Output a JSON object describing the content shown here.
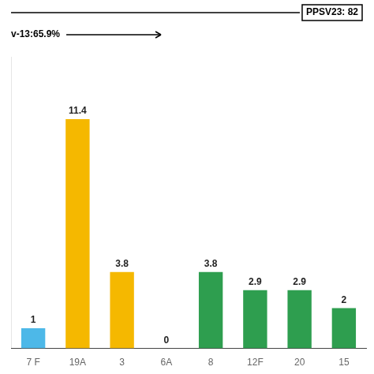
{
  "chart_data": {
    "type": "bar",
    "categories": [
      "7 F",
      "19A",
      "3",
      "6A",
      "8",
      "12F",
      "20",
      "15"
    ],
    "values": [
      1,
      11.4,
      3.8,
      0,
      3.8,
      2.9,
      2.9,
      2
    ],
    "colors": [
      "#4db8e8",
      "#f5b800",
      "#f5b800",
      "#f5b800",
      "#2e9e4f",
      "#2e9e4f",
      "#2e9e4f",
      "#2e9e4f"
    ],
    "ylim": [
      0,
      14.5
    ],
    "yticks": [],
    "data_labels": true,
    "grid": false,
    "tick_labels": "x",
    "annotations": [
      "PPSV23: 82",
      "v-13:65.9%"
    ]
  }
}
